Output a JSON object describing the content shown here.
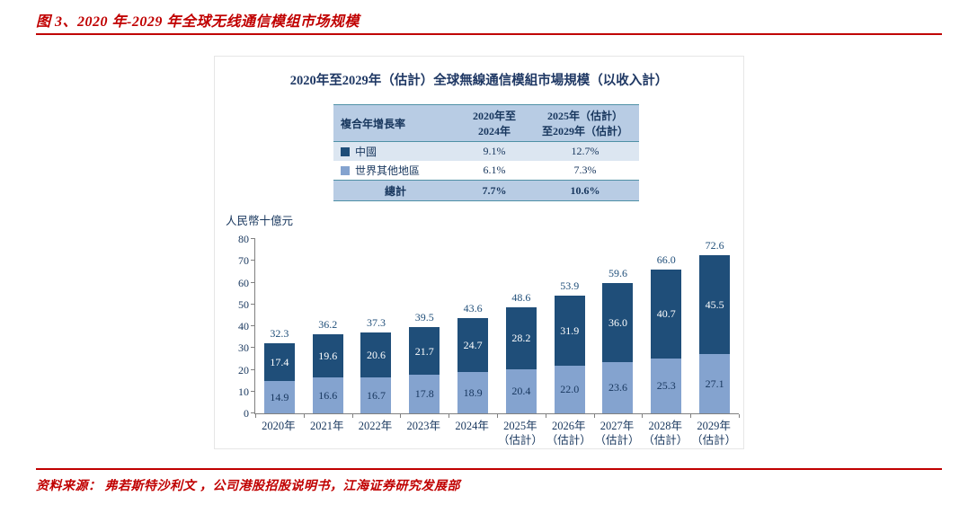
{
  "report": {
    "figure_title": "图 3、2020 年-2029 年全球无线通信模组市场规模",
    "source_text": "资料来源： 弗若斯特沙利文 ，公司港股招股说明书，江海证券研究发展部"
  },
  "chart": {
    "title": "2020年至2029年（估計）全球無線通信模組市場規模（以收入計）",
    "unit_label": "人民幣十億元",
    "growth_table": {
      "header": [
        "複合年增長率",
        "2020年至\n2024年",
        "2025年（估計）\n至2029年（估計）"
      ],
      "rows": [
        {
          "label": "中國",
          "cagr_2020_2024": "9.1%",
          "cagr_2025_2029": "12.7%"
        },
        {
          "label": "世界其他地區",
          "cagr_2020_2024": "6.1%",
          "cagr_2025_2029": "7.3%"
        },
        {
          "label": "總計",
          "cagr_2020_2024": "7.7%",
          "cagr_2025_2029": "10.6%"
        }
      ]
    }
  },
  "colors": {
    "china_bar": "#1F4E79",
    "rest_of_world_bar": "#84A3CF",
    "accent_red": "#C00000",
    "table_header_bg": "#B8CCE4",
    "table_alt_row_bg": "#DCE6F1",
    "table_line": "#4F90A6"
  },
  "chart_data": {
    "type": "bar",
    "stacked": true,
    "title": "2020年至2029年（估計）全球無線通信模組市場規模（以收入計）",
    "ylabel": "人民幣十億元",
    "xlabel": "",
    "ylim": [
      0,
      80
    ],
    "ytick_step": 10,
    "grid": false,
    "legend_position": "table-above-plot",
    "categories": [
      "2020年",
      "2021年",
      "2022年",
      "2023年",
      "2024年",
      "2025年\n（估計）",
      "2026年\n（估計）",
      "2027年\n（估計）",
      "2028年\n（估計）",
      "2029年\n（估計）"
    ],
    "series": [
      {
        "name": "世界其他地區",
        "color": "#84A3CF",
        "label_color": "#17365D",
        "values": [
          14.9,
          16.6,
          16.7,
          17.8,
          18.9,
          20.4,
          22.0,
          23.6,
          25.3,
          27.1
        ]
      },
      {
        "name": "中國",
        "color": "#1F4E79",
        "label_color": "#FFFFFF",
        "values": [
          17.4,
          19.6,
          20.6,
          21.7,
          24.7,
          28.2,
          31.9,
          36.0,
          40.7,
          45.5
        ]
      }
    ],
    "totals": [
      32.3,
      36.2,
      37.3,
      39.5,
      43.6,
      48.6,
      53.9,
      59.6,
      66.0,
      72.6
    ]
  }
}
